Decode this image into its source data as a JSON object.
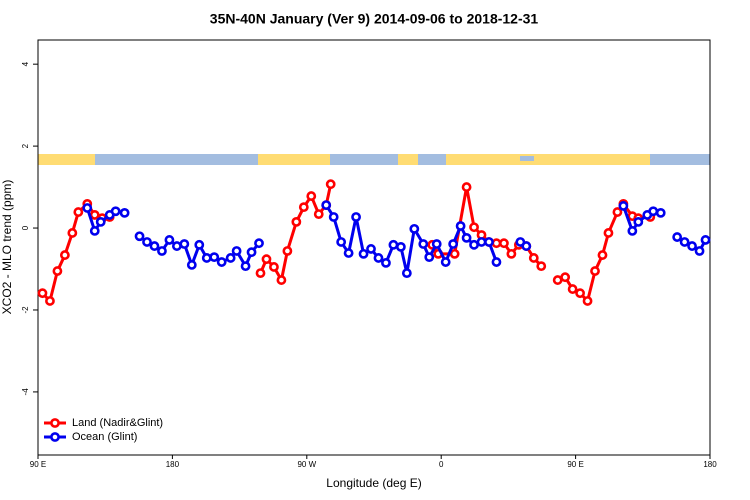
{
  "chart_data": {
    "type": "line",
    "title": "35N-40N January (Ver 9)   2014-09-06 to 2018-12-31",
    "xlabel": "Longitude (deg E)",
    "ylabel": "XCO2 - MLO trend (ppm)",
    "xlim": [
      90,
      540
    ],
    "ylim": [
      -5.54,
      4.59
    ],
    "xticks": [
      {
        "value": 90,
        "label": "90 E"
      },
      180,
      {
        "value": 270,
        "label": "90 W"
      },
      {
        "value": 360,
        "label": "0"
      },
      {
        "value": 450,
        "label": "90 E"
      },
      {
        "value": 540,
        "label": "180"
      }
    ],
    "yticks": [
      -4,
      -2,
      0,
      2,
      4
    ],
    "legend": "bottom-left",
    "series": [
      {
        "name": "Land (Nadir&Glint)",
        "color": "#ff0000",
        "x": [
          93,
          98,
          103,
          108,
          113,
          117,
          123,
          128,
          133,
          138,
          190,
          239,
          243,
          248,
          253,
          257,
          263,
          268,
          273,
          278,
          283,
          286,
          330,
          354,
          358,
          369,
          377,
          382,
          387,
          392,
          397,
          402,
          407,
          412,
          417,
          422,
          427,
          432,
          438,
          443,
          448,
          453,
          458,
          463,
          468,
          472,
          478,
          482,
          488,
          492,
          500
        ],
        "values": [
          -1.59,
          -1.78,
          -1.05,
          -0.66,
          -0.12,
          0.39,
          0.59,
          0.32,
          0.24,
          0.27,
          null,
          -1.1,
          -0.76,
          -0.95,
          -1.27,
          -0.56,
          0.15,
          0.51,
          0.78,
          0.34,
          0.56,
          1.07,
          null,
          -0.41,
          -0.63,
          -0.63,
          1.0,
          0.02,
          -0.17,
          -0.34,
          -0.37,
          -0.37,
          -0.63,
          -0.41,
          -0.44,
          -0.73,
          -0.93,
          null,
          -1.27,
          -1.2,
          -1.49,
          -1.59,
          -1.78,
          -1.05,
          -0.66,
          -0.12,
          0.39,
          0.59,
          0.29,
          0.24,
          0.27
        ]
      },
      {
        "name": "Ocean (Glint)",
        "color": "#0000ee",
        "x": [
          123,
          128,
          132,
          138,
          142,
          148,
          152,
          158,
          163,
          168,
          173,
          178,
          183,
          188,
          193,
          198,
          203,
          208,
          213,
          219,
          223,
          229,
          233,
          238,
          260,
          283,
          288,
          293,
          298,
          303,
          308,
          313,
          318,
          323,
          328,
          333,
          337,
          342,
          348,
          352,
          357,
          363,
          368,
          373,
          377,
          382,
          387,
          392,
          397,
          402,
          413,
          417,
          450,
          482,
          488,
          492,
          498,
          502,
          507,
          512,
          518,
          523,
          528,
          533,
          537
        ],
        "values": [
          0.49,
          -0.07,
          0.15,
          0.32,
          0.41,
          0.37,
          null,
          -0.2,
          -0.34,
          -0.44,
          -0.56,
          -0.29,
          -0.44,
          -0.39,
          -0.9,
          -0.41,
          -0.73,
          -0.71,
          -0.83,
          -0.73,
          -0.56,
          -0.93,
          -0.59,
          -0.37,
          null,
          0.56,
          0.27,
          -0.34,
          -0.61,
          0.27,
          -0.63,
          -0.51,
          -0.73,
          -0.85,
          -0.41,
          -0.46,
          -1.1,
          -0.02,
          -0.39,
          -0.71,
          -0.39,
          -0.83,
          -0.39,
          0.05,
          -0.24,
          -0.41,
          -0.34,
          -0.34,
          -0.83,
          null,
          -0.34,
          -0.44,
          null,
          0.54,
          -0.07,
          0.15,
          0.32,
          0.41,
          0.37,
          null,
          -0.22,
          -0.34,
          -0.44,
          -0.56,
          -0.29
        ]
      }
    ]
  }
}
